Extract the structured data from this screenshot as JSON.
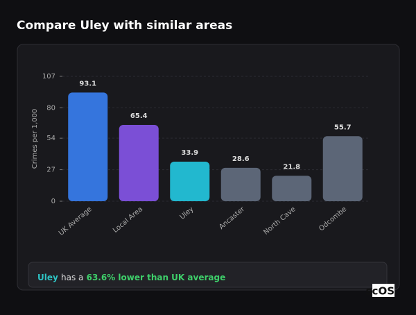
{
  "header": {
    "title": "Compare Uley with similar areas"
  },
  "chart_data": {
    "type": "bar",
    "y_label": "Crimes per 1,000",
    "categories": [
      "UK Average",
      "Local Area",
      "Uley",
      "Ancaster",
      "North Cave",
      "Odcombe"
    ],
    "values": [
      93.1,
      65.4,
      33.9,
      28.6,
      21.8,
      55.7
    ],
    "colors": [
      "#3575dd",
      "#7b4fd6",
      "#22b8cf",
      "#5c6677",
      "#5c6677",
      "#5c6677"
    ],
    "ylim": [
      0,
      107
    ],
    "yticks": [
      0,
      27,
      54,
      80,
      107
    ],
    "grid": true
  },
  "summary": {
    "area": "Uley",
    "middle": "has a",
    "comparison": "63.6% lower than UK average"
  },
  "logo": "scOS"
}
